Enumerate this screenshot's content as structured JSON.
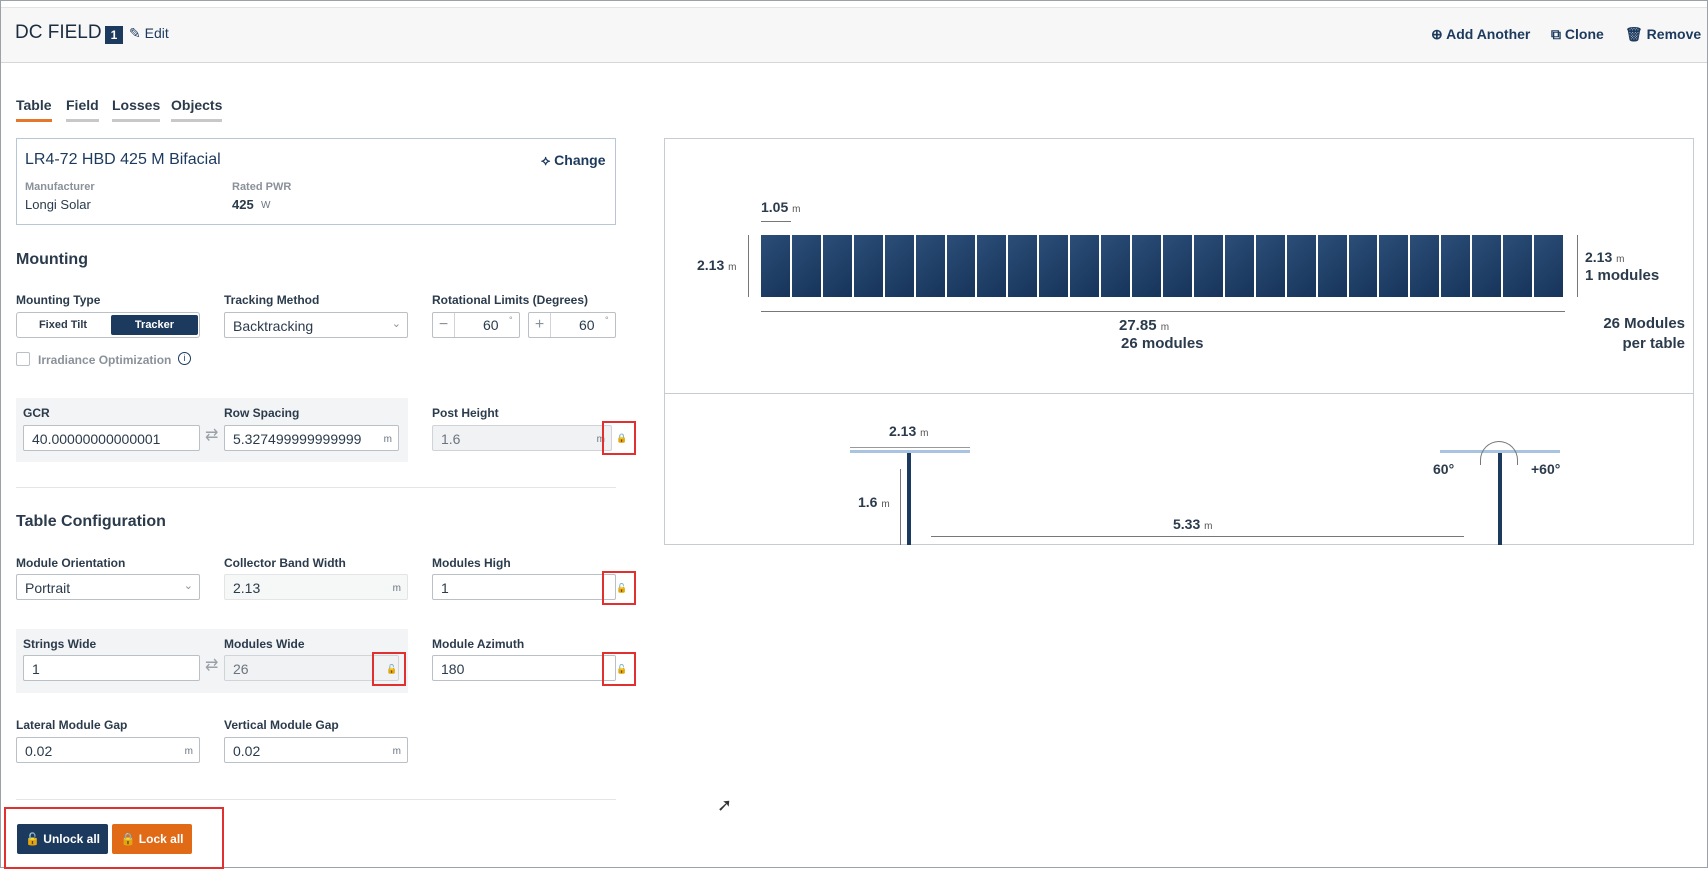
{
  "header": {
    "title": "DC FIELD",
    "index": "1",
    "edit": "Edit",
    "add_another": "Add Another",
    "clone": "Clone",
    "remove": "Remove"
  },
  "tabs": [
    {
      "label": "Table"
    },
    {
      "label": "Field"
    },
    {
      "label": "Losses"
    },
    {
      "label": "Objects"
    }
  ],
  "module": {
    "name": "LR4-72 HBD 425 M Bifacial",
    "change": "Change",
    "manufacturer_label": "Manufacturer",
    "manufacturer": "Longi Solar",
    "rated_label": "Rated PWR",
    "rated_value": "425",
    "rated_unit": "W"
  },
  "mounting": {
    "title": "Mounting",
    "type_label": "Mounting Type",
    "fixed_tilt": "Fixed Tilt",
    "tracker": "Tracker",
    "tracking_label": "Tracking Method",
    "tracking_value": "Backtracking",
    "rot_label": "Rotational Limits (Degrees)",
    "rot_min": "60",
    "rot_max": "60",
    "irradiance": "Irradiance Optimization"
  },
  "spacing": {
    "gcr_label": "GCR",
    "gcr_value": "40.00000000000001",
    "row_label": "Row Spacing",
    "row_value": "5.327499999999999",
    "post_label": "Post Height",
    "post_value": "1.6",
    "unit": "m"
  },
  "table_config": {
    "title": "Table Configuration",
    "orient_label": "Module Orientation",
    "orient_value": "Portrait",
    "cbw_label": "Collector Band Width",
    "cbw_value": "2.13",
    "mh_label": "Modules High",
    "mh_value": "1",
    "sw_label": "Strings Wide",
    "sw_value": "1",
    "mw_label": "Modules Wide",
    "mw_value": "26",
    "az_label": "Module Azimuth",
    "az_value": "180",
    "lat_label": "Lateral Module Gap",
    "lat_value": "0.02",
    "vert_label": "Vertical Module Gap",
    "vert_value": "0.02",
    "unit": "m"
  },
  "buttons": {
    "unlock": "Unlock all",
    "lock": "Lock all"
  },
  "diagram": {
    "module_count": 26,
    "module_width": "1.05",
    "height_left": "2.13",
    "height_right": "2.13",
    "modules_high": "1 modules",
    "length": "27.85",
    "modules_text": "26 modules",
    "per_table_1": "26 Modules",
    "per_table_2": "per table",
    "side_width": "2.13",
    "post_height": "1.6",
    "row_spacing": "5.33",
    "angle_left": "60°",
    "angle_right": "+60°",
    "unit": "m"
  },
  "colors": {
    "navy": "#1c3a5e",
    "orange": "#e06a16",
    "accent": "#e4772a",
    "lockred": "#e03030"
  }
}
